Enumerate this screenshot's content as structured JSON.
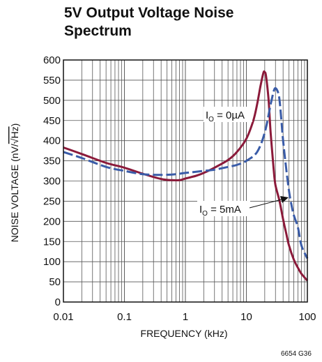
{
  "chart_data": {
    "type": "line",
    "title_line1": "5V Output Voltage Noise",
    "title_line2": "Spectrum",
    "xlabel": "FREQUENCY (kHz)",
    "ylabel_prefix": "NOISE VOLTAGE (nV/",
    "ylabel_radical": "√Hz",
    "ylabel_suffix": ")",
    "x_scale": "log",
    "xlim": [
      0.01,
      100
    ],
    "ylim": [
      0,
      600
    ],
    "grid": true,
    "x_ticks": [
      0.01,
      0.1,
      1,
      10,
      100
    ],
    "x_tick_labels": [
      "0.01",
      "0.1",
      "1",
      "10",
      "100"
    ],
    "y_ticks": [
      0,
      50,
      100,
      150,
      200,
      250,
      300,
      350,
      400,
      450,
      500,
      550,
      600
    ],
    "y_tick_labels": [
      "0",
      "50",
      "100",
      "150",
      "200",
      "250",
      "300",
      "350",
      "400",
      "450",
      "500",
      "550",
      "600"
    ],
    "series": [
      {
        "name": "I0 = 0µA",
        "color": "#8b1a3a",
        "style": "solid",
        "x": [
          0.01,
          0.02,
          0.05,
          0.1,
          0.2,
          0.4,
          0.6,
          0.8,
          1,
          1.5,
          2,
          3,
          5,
          7,
          10,
          13,
          15,
          17,
          19,
          20,
          21,
          23,
          25,
          28,
          30,
          35,
          40,
          45,
          50,
          60,
          70,
          80,
          100
        ],
        "y": [
          383,
          367,
          345,
          333,
          318,
          305,
          302,
          302,
          306,
          313,
          320,
          333,
          352,
          372,
          405,
          450,
          490,
          535,
          568,
          570,
          560,
          505,
          420,
          330,
          290,
          250,
          205,
          170,
          140,
          105,
          85,
          70,
          53
        ]
      },
      {
        "name": "I0 = 5mA",
        "color": "#3a5ca8",
        "style": "dashed",
        "x": [
          0.01,
          0.02,
          0.05,
          0.1,
          0.2,
          0.4,
          0.7,
          1,
          2,
          3,
          5,
          7,
          10,
          15,
          20,
          25,
          28,
          30,
          33,
          35,
          38,
          40,
          45,
          50,
          55,
          60,
          70,
          80,
          100
        ],
        "y": [
          372,
          357,
          335,
          325,
          317,
          315,
          317,
          320,
          325,
          328,
          335,
          340,
          350,
          372,
          420,
          490,
          522,
          530,
          520,
          500,
          440,
          400,
          330,
          275,
          240,
          215,
          185,
          140,
          108
        ]
      }
    ],
    "annotations": [
      {
        "label_main": "I",
        "label_sub": "O",
        "label_rest": " = 0µA"
      },
      {
        "label_main": "I",
        "label_sub": "O",
        "label_rest": " = 5mA"
      }
    ],
    "figure_id": "6654 G36"
  }
}
